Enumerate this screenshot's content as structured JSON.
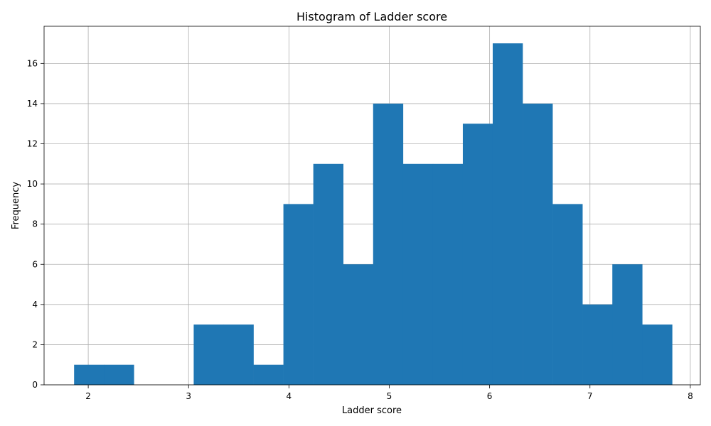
{
  "chart_data": {
    "type": "bar",
    "title": "Histogram of Ladder score",
    "xlabel": "Ladder score",
    "ylabel": "Frequency",
    "bin_edges": [
      1.859,
      2.157,
      2.455,
      2.753,
      3.051,
      3.349,
      3.647,
      3.945,
      4.243,
      4.541,
      4.839,
      5.137,
      5.435,
      5.733,
      6.031,
      6.329,
      6.627,
      6.925,
      7.223,
      7.521,
      7.819
    ],
    "values": [
      1,
      1,
      0,
      0,
      3,
      3,
      1,
      9,
      11,
      6,
      14,
      11,
      11,
      13,
      17,
      14,
      9,
      4,
      6,
      3
    ],
    "xlim": [
      1.56,
      8.1
    ],
    "ylim": [
      0,
      17.85
    ],
    "xticks": [
      2,
      3,
      4,
      5,
      6,
      7,
      8
    ],
    "yticks": [
      0,
      2,
      4,
      6,
      8,
      10,
      12,
      14,
      16
    ],
    "grid": true,
    "bar_color": "#1f77b4"
  }
}
